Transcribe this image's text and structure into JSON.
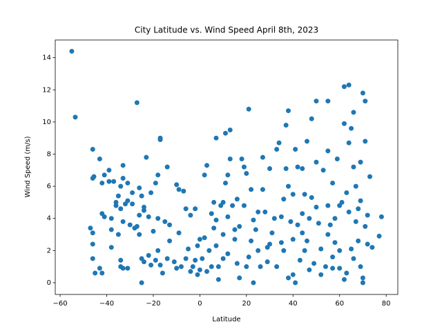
{
  "chart_data": {
    "type": "scatter",
    "title": "City Latitude vs. Wind Speed April 8th, 2023",
    "x_label": "Latitude",
    "y_label": "Wind Speed (m/s)",
    "color": "#1f77b4",
    "xlim": [
      -62.1,
      85.0
    ],
    "ylim": [
      -0.73,
      15.1
    ],
    "xticks": [
      {
        "value": -60,
        "label": "−60"
      },
      {
        "value": -40,
        "label": "−40"
      },
      {
        "value": -20,
        "label": "−20"
      },
      0,
      20,
      40,
      60,
      80
    ],
    "yticks": [
      0,
      2,
      4,
      6,
      8,
      10,
      12,
      14
    ],
    "x": [
      -55,
      -53.5,
      -27,
      -46,
      -43,
      -46,
      -45.5,
      -41,
      -42,
      -39,
      -39,
      -37,
      -36,
      -35,
      -34,
      -33,
      -31,
      -33,
      -29,
      -26,
      -25,
      -24,
      -23,
      -21,
      -19,
      -18,
      -17,
      -17,
      -14,
      -9,
      -10,
      -7,
      -42,
      -41,
      -38,
      -36,
      -34,
      -32,
      -31,
      -29,
      -28,
      -26,
      -24,
      -22,
      -20,
      -18,
      -15,
      -13,
      -9,
      -6,
      -4,
      -2,
      -47,
      -46,
      -46,
      -46,
      -45,
      -43,
      -42,
      -38,
      -38,
      -35,
      -34,
      -34,
      -33,
      -31,
      -33,
      -30,
      -27,
      -26,
      -25,
      -24,
      -25,
      -22,
      -21,
      -19,
      -18,
      -17,
      -16,
      -14,
      -13,
      -11,
      -10,
      -8,
      -6,
      -5,
      -4,
      -2,
      -1,
      0,
      1,
      2,
      3,
      3,
      4,
      5,
      6,
      6,
      7,
      7,
      8,
      8,
      9,
      10,
      10,
      11,
      11,
      12,
      12,
      13,
      13,
      14,
      15,
      16,
      16,
      17,
      18,
      19,
      19,
      20,
      21,
      21,
      22,
      22,
      23,
      24,
      25,
      26,
      27,
      27,
      28,
      29,
      30,
      31,
      32,
      33,
      34,
      35,
      36,
      37,
      37,
      38,
      38,
      39,
      40,
      40,
      41,
      42,
      42,
      43,
      44,
      44,
      45,
      46,
      47,
      48,
      48,
      49,
      50,
      50,
      51,
      52,
      53,
      54,
      55,
      55,
      55,
      56,
      57,
      57,
      58,
      59,
      60,
      61,
      62,
      62,
      62,
      63,
      64,
      64,
      64,
      65,
      65,
      66,
      66,
      67,
      67,
      68,
      69,
      69,
      70,
      70,
      70,
      71,
      71,
      71,
      72,
      72,
      73,
      74,
      77,
      78,
      69,
      68,
      60,
      58,
      45,
      35,
      30,
      25,
      20,
      15,
      10,
      5,
      0,
      -3,
      33,
      38,
      41,
      47,
      52,
      57,
      63,
      29,
      36,
      46,
      55,
      60,
      66,
      40,
      44,
      50,
      23,
      17,
      12,
      7,
      2,
      -1
    ],
    "y": [
      14.4,
      10.3,
      11.2,
      8.3,
      7.7,
      6.5,
      6.6,
      6.7,
      6.2,
      7.0,
      6.3,
      6.3,
      5.0,
      5.4,
      6.0,
      7.3,
      6.2,
      6.5,
      5.6,
      5.9,
      5.4,
      4.7,
      7.8,
      5.6,
      6.2,
      6.7,
      9.0,
      8.9,
      7.2,
      5.8,
      6.1,
      5.7,
      4.3,
      4.1,
      4.0,
      4.8,
      4.6,
      4.9,
      5.1,
      4.9,
      3.4,
      4.2,
      4.5,
      4.1,
      3.2,
      4.0,
      3.8,
      3.6,
      3.1,
      4.6,
      4.2,
      4.6,
      3.4,
      3.1,
      2.4,
      1.5,
      0.6,
      0.9,
      0.6,
      2.2,
      3.3,
      3.0,
      1.4,
      1.0,
      0.9,
      0.9,
      3.8,
      3.6,
      3.5,
      3.0,
      1.5,
      1.3,
      0.0,
      1.7,
      1.1,
      1.4,
      2.0,
      1.1,
      0.6,
      1.5,
      2.6,
      1.3,
      0.9,
      1.0,
      1.5,
      2.1,
      0.7,
      1.4,
      0.5,
      2.7,
      1.5,
      6.7,
      7.3,
      0.7,
      2.0,
      4.3,
      5.0,
      3.4,
      9.0,
      2.3,
      1.0,
      0.2,
      4.8,
      5.0,
      3.0,
      6.2,
      9.3,
      6.7,
      1.8,
      9.5,
      7.7,
      4.8,
      2.7,
      1.2,
      5.2,
      0.3,
      7.7,
      7.2,
      4.8,
      6.8,
      10.8,
      1.6,
      5.8,
      2.6,
      0.0,
      3.3,
      4.4,
      1.0,
      5.8,
      7.8,
      4.4,
      2.2,
      7.1,
      3.1,
      4.0,
      8.3,
      8.7,
      2.5,
      5.2,
      9.8,
      7.1,
      10.7,
      6.0,
      3.8,
      0.5,
      5.5,
      8.3,
      7.2,
      3.6,
      1.4,
      7.1,
      4.3,
      2.0,
      8.8,
      4.0,
      10.2,
      5.3,
      1.2,
      11.3,
      7.5,
      3.7,
      2.1,
      7.0,
      1.0,
      11.3,
      8.2,
      4.8,
      3.6,
      6.2,
      1.6,
      2.5,
      7.7,
      0.9,
      5.0,
      12.2,
      9.9,
      0.2,
      5.6,
      12.3,
      8.7,
      4.4,
      9.6,
      2.1,
      10.6,
      7.2,
      6.0,
      3.8,
      2.6,
      7.5,
      1.0,
      0.3,
      0.0,
      11.8,
      11.3,
      8.8,
      3.5,
      4.2,
      2.4,
      6.6,
      2.2,
      2.9,
      4.1,
      5.1,
      4.6,
      4.8,
      4.0,
      5.5,
      4.1,
      2.4,
      2.0,
      1.0,
      3.3,
      1.5,
      1.0,
      0.8,
      1.0,
      1.0,
      0.3,
      0.0,
      0.8,
      0.5,
      0.9,
      0.6,
      1.3,
      2.0,
      2.6,
      3.0,
      2.0,
      1.5,
      2.7,
      3.1,
      4.7,
      3.9,
      3.5,
      4.1,
      3.9,
      2.8,
      2.3
    ]
  }
}
